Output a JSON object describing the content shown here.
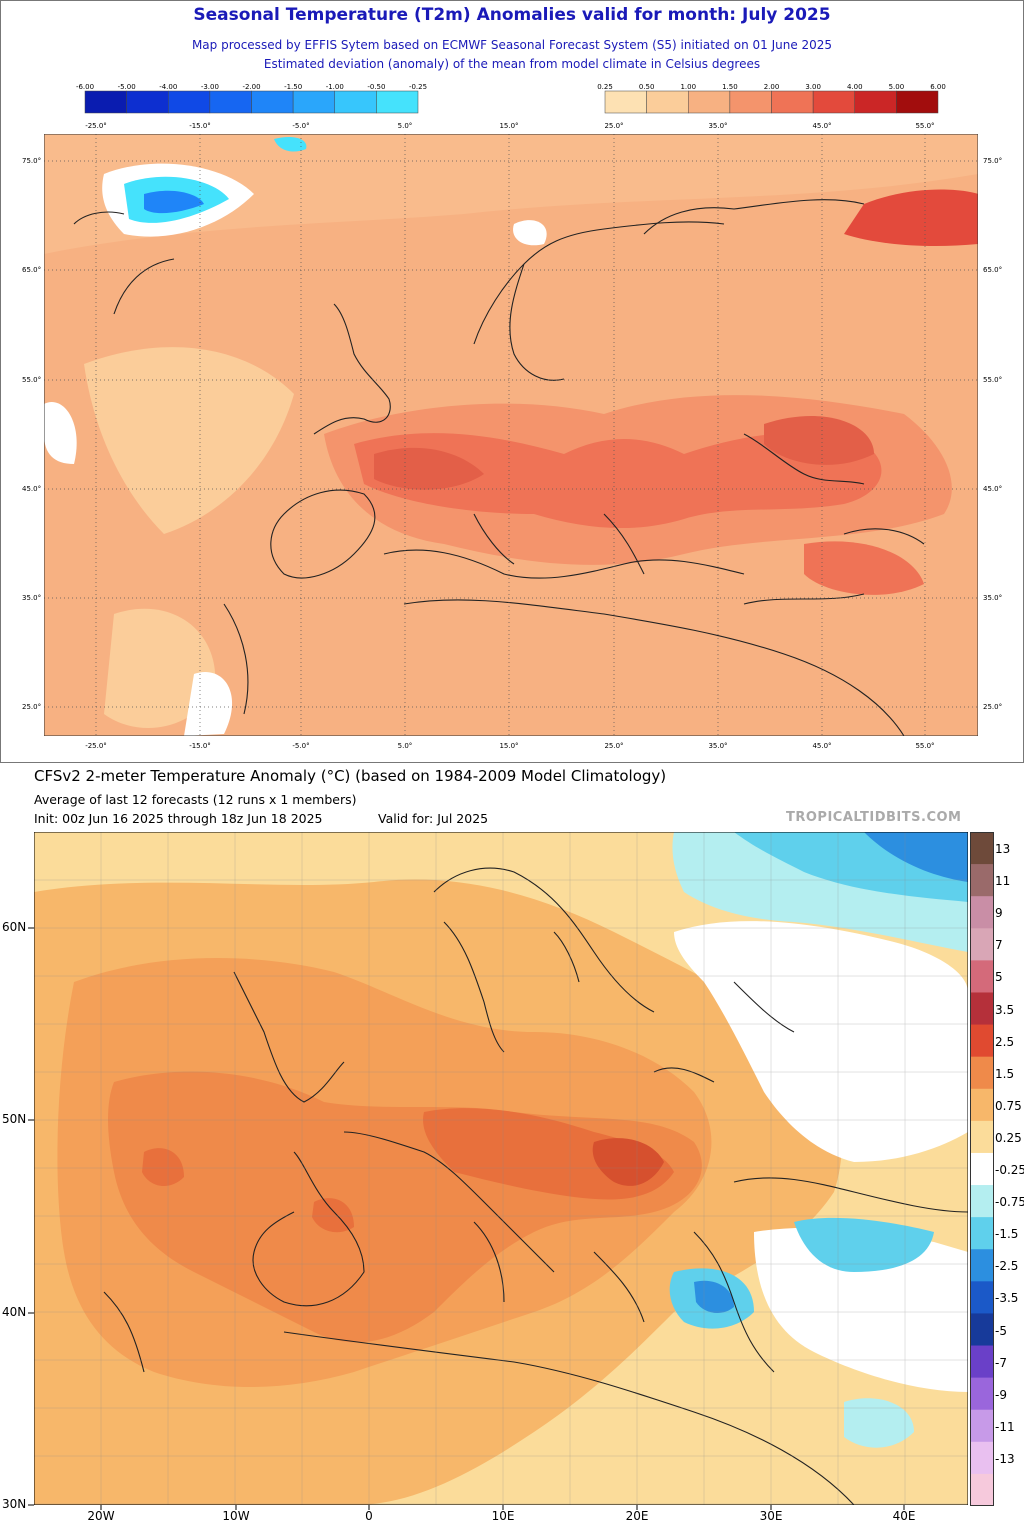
{
  "top_panel": {
    "title": "Seasonal Temperature (T2m) Anomalies valid for month: July 2025",
    "subtitle1": "Map processed by EFFIS Sytem based on ECMWF Seasonal Forecast System (S5) initiated on 01 June 2025",
    "subtitle2": "Estimated deviation (anomaly) of the mean from model climate in Celsius degrees",
    "legend_cold": {
      "labels": [
        "-6.00",
        "-5.00",
        "-4.00",
        "-3.00",
        "-2.00",
        "-1.50",
        "-1.00",
        "-0.50",
        "-0.25"
      ],
      "colors": [
        "#0a1cb0",
        "#0d2fd0",
        "#1049e6",
        "#1666f2",
        "#1f85f8",
        "#2aa6fb",
        "#37c6fc",
        "#45e2fc"
      ]
    },
    "legend_warm": {
      "labels": [
        "0.25",
        "0.50",
        "1.00",
        "1.50",
        "2.00",
        "3.00",
        "4.00",
        "5.00",
        "6.00"
      ],
      "colors": [
        "#fde1b3",
        "#fbcd9a",
        "#f7b182",
        "#f4946c",
        "#ef7356",
        "#e34a3c",
        "#cb2626",
        "#a20d0d"
      ]
    },
    "lon_labels": [
      "-25.0°",
      "-15.0°",
      "-5.0°",
      "5.0°",
      "15.0°",
      "25.0°",
      "35.0°",
      "45.0°",
      "55.0°"
    ],
    "lat_labels": [
      "75.0°",
      "65.0°",
      "55.0°",
      "45.0°",
      "35.0°",
      "25.0°"
    ]
  },
  "bottom_panel": {
    "title": "CFSv2 2-meter Temperature Anomaly (°C) (based on 1984-2009 Model Climatology)",
    "subtitle": "Average of last 12 forecasts (12 runs x 1 members)",
    "init": "Init: 00z Jun 16 2025 through 18z Jun 18 2025",
    "valid": "Valid for: Jul 2025",
    "credit": "TROPICALTIDBITS.COM",
    "lat_labels": [
      "60N",
      "50N",
      "40N",
      "30N"
    ],
    "lon_labels": [
      "20W",
      "10W",
      "0",
      "10E",
      "20E",
      "30E",
      "40E"
    ],
    "colorbar": {
      "labels": [
        "13",
        "11",
        "9",
        "7",
        "5",
        "3.5",
        "2.5",
        "1.5",
        "0.75",
        "0.25",
        "-0.25",
        "-0.75",
        "-1.5",
        "-2.5",
        "-3.5",
        "-5",
        "-7",
        "-9",
        "-11",
        "-13"
      ],
      "colors": [
        "#6e4a3a",
        "#9a6a6a",
        "#c98ea6",
        "#d9a6b6",
        "#d46a7a",
        "#b5303a",
        "#e04a30",
        "#ef8a4a",
        "#f7b76a",
        "#fbdc9a",
        "#ffffff",
        "#b4eef0",
        "#5fd0ec",
        "#2c8fe0",
        "#1b59c8",
        "#173a9a",
        "#6a40c8",
        "#9a66dc",
        "#c79ae8",
        "#e9c0f0",
        "#f6c9dc"
      ]
    }
  }
}
